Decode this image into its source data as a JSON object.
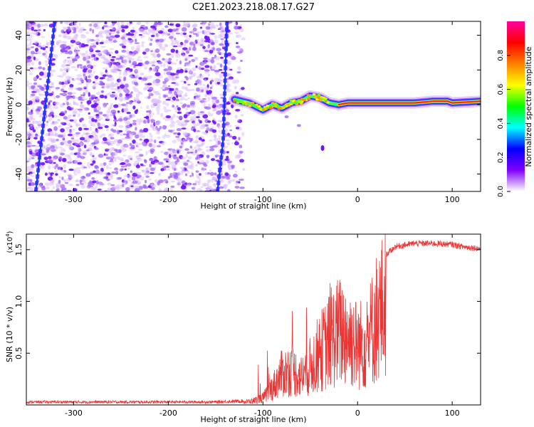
{
  "title": "C2E1.2023.218.08.17.G27",
  "chart_data": [
    {
      "type": "heatmap",
      "xlabel": "Height of straight line (km)",
      "ylabel": "Frequency (Hz)",
      "xlim": [
        -350,
        130
      ],
      "ylim": [
        -50,
        48
      ],
      "x_ticks": [
        -300,
        -200,
        -100,
        0,
        100
      ],
      "y_ticks": [
        -40,
        -20,
        0,
        20,
        40
      ],
      "colorbar": {
        "label": "Normalized spectral amplitude",
        "range": [
          0,
          1
        ],
        "ticks": [
          0.0,
          0.2,
          0.4,
          0.6,
          0.8
        ],
        "colormap": [
          "#ffffff",
          "#8000ff",
          "#0000ff",
          "#00ffff",
          "#00ff00",
          "#ffff00",
          "#ff8000",
          "#ff0000",
          "#ff00a0"
        ]
      },
      "features": {
        "scatter_region_x": [
          -350,
          -120
        ],
        "signal_trace": [
          [
            -130,
            3
          ],
          [
            -115,
            1
          ],
          [
            -100,
            -3
          ],
          [
            -90,
            0
          ],
          [
            -80,
            -2
          ],
          [
            -70,
            1
          ],
          [
            -60,
            2
          ],
          [
            -50,
            5
          ],
          [
            -40,
            4
          ],
          [
            -30,
            1
          ],
          [
            -20,
            0
          ],
          [
            -10,
            1
          ],
          [
            0,
            1
          ],
          [
            20,
            1
          ],
          [
            40,
            1
          ],
          [
            60,
            1
          ],
          [
            80,
            2
          ],
          [
            95,
            2
          ],
          [
            100,
            1
          ],
          [
            130,
            2
          ]
        ],
        "blue_stripes": [
          [
            [
              -340,
              -50
            ],
            [
              -320,
              48
            ]
          ],
          [
            [
              -148,
              -50
            ],
            [
              -142,
              -20
            ],
            [
              -138,
              48
            ]
          ]
        ],
        "isolated_blob": [
          -37,
          -25
        ]
      }
    },
    {
      "type": "line",
      "xlabel": "Height of straight line (km)",
      "ylabel": "SNR (10 * v/v)",
      "yscale_label": "(x10",
      "yscale_exp": "4",
      "xlim": [
        -350,
        130
      ],
      "ylim": [
        0,
        1.65
      ],
      "x_ticks": [
        -300,
        -200,
        -100,
        0,
        100
      ],
      "y_ticks": [
        0.5,
        1.0,
        1.5
      ],
      "line_color": "#ee3333",
      "envelope": [
        [
          -350,
          0.03
        ],
        [
          -200,
          0.03
        ],
        [
          -150,
          0.03
        ],
        [
          -120,
          0.04
        ],
        [
          -110,
          0.06
        ],
        [
          -100,
          0.1
        ],
        [
          -90,
          0.25
        ],
        [
          -80,
          0.45
        ],
        [
          -70,
          0.5
        ],
        [
          -60,
          0.4
        ],
        [
          -50,
          0.55
        ],
        [
          -40,
          0.75
        ],
        [
          -30,
          0.9
        ],
        [
          -20,
          1.05
        ],
        [
          -10,
          1.0
        ],
        [
          0,
          0.85
        ],
        [
          10,
          0.9
        ],
        [
          20,
          1.25
        ],
        [
          30,
          1.45
        ],
        [
          40,
          1.53
        ],
        [
          60,
          1.56
        ],
        [
          80,
          1.56
        ],
        [
          100,
          1.55
        ],
        [
          110,
          1.53
        ],
        [
          130,
          1.51
        ]
      ]
    }
  ]
}
